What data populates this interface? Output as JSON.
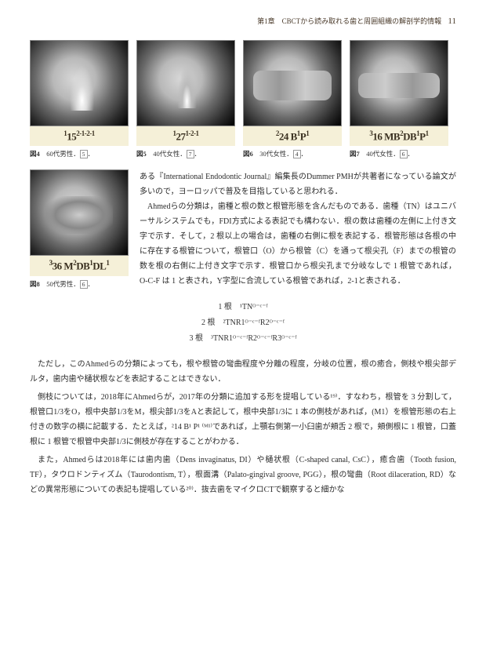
{
  "header": {
    "chapter": "第1章　CBCTから読み取れる歯と周囲組織の解剖学的情報",
    "page": "11"
  },
  "figures": [
    {
      "code_html": "<sup>1</sup>15<sup>2-1-2-1</sup>",
      "num": "図4",
      "desc": "60代男性．",
      "ref": "5"
    },
    {
      "code_html": "<sup>1</sup>27<sup>1-2-1</sup>",
      "num": "図5",
      "desc": "40代女性．",
      "ref": "7"
    },
    {
      "code_html": "<sup>2</sup>24 B<sup>1</sup>P<sup>1</sup>",
      "num": "図6",
      "desc": "30代女性．",
      "ref": "4"
    },
    {
      "code_html": "<sup>3</sup>16 MB<sup>2</sup>DB<sup>1</sup>P<sup>1</sup>",
      "num": "図7",
      "desc": "40代女性．",
      "ref": "6"
    },
    {
      "code_html": "<sup>3</sup>36 M<sup>2</sup>DB<sup>1</sup>DL<sup>1</sup>",
      "num": "図8",
      "desc": "50代男性．",
      "ref": "6"
    }
  ],
  "body": {
    "p1": "ある『International Endodontic Journal』編集長のDummer PMHが共著者になっている論文が多いので，ヨーロッパで普及を目指していると思われる．",
    "p2": "　Ahmedらの分類は，歯種と根の数と根管形態を含んだものである．歯種（TN）はユニバーサルシステムでも，FDI方式による表記でも構わない．根の数は歯種の左側に上付き文字で示す．そして，2 根以上の場合は，歯種の右側に根を表記する．根管形態は各根の中に存在する根管について，根管口（O）から根管（C）を通って根尖孔（F）までの根管の数を根の右側に上付き文字で示す．根管口から根尖孔まで分岐なしで 1 根管であれば，O‑C‑F は 1 と表され，Y字型に合流している根管であれば，2‑1と表される．"
  },
  "roots": {
    "r1_label": "1 根",
    "r1_val": "¹TNᴼ⁻ᶜ⁻ᶠ",
    "r2_label": "2 根",
    "r2_val": "²TNR1ᴼ⁻ᶜ⁻ᶠR2ᴼ⁻ᶜ⁻ᶠ",
    "r3_label": "3 根",
    "r3_val": "³TNR1ᴼ⁻ᶜ⁻ᶠR2ᴼ⁻ᶜ⁻ᶠR3ᴼ⁻ᶜ⁻ᶠ"
  },
  "full": {
    "p3": "ただし，このAhmedらの分類によっても，根や根管の彎曲程度や分離の程度，分岐の位置，根の癒合，側枝や根尖部デルタ，歯内歯や樋状根などを表記することはできない．",
    "p4": "側枝については，2018年にAhmedらが，2017年の分類に追加する形を提唱している¹⁹⁾．すなわち，根管を 3 分割して，根管口1/3をO，根中央部1/3をM，根尖部1/3をAと表記して，根中央部1/3に 1 本の側枝があれば，(M1）を根管形態の右上付きの数字の横に記載する．たとえば，²14 B¹ P¹ ⁽ᴹ¹⁾であれば，上顎右側第一小臼歯が頬舌 2 根で，頬側根に 1 根管，口蓋根に 1 根管で根管中央部1/3に側枝が存在することがわかる．",
    "p5": "また，Ahmedらは2018年には歯内歯（Dens invaginatus, DI）や樋状根（C‑shaped canal, CsC），癒合歯（Tooth fusion, TF），タウロドンティズム（Taurodontism, T），根面溝（Palato‑gingival groove, PGG），根の彎曲（Root dilaceration, RD）などの異常形態についての表記も提唱している²⁰⁾．抜去歯をマイクロCTで観察すると細かな"
  }
}
